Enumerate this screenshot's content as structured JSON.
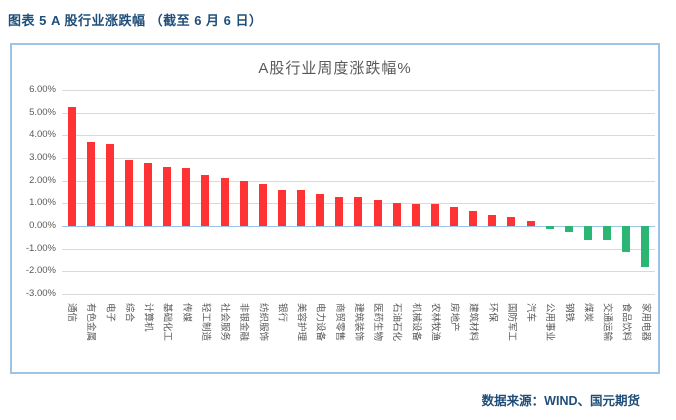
{
  "page": {
    "header_title": "图表 5 A 股行业涨跌幅 （截至 6 月 6 日）",
    "source_text": "数据来源：WIND、国元期货"
  },
  "chart_data": {
    "type": "bar",
    "title": "A股行业周度涨跌幅%",
    "categories": [
      "通信",
      "有色金属",
      "电子",
      "综合",
      "计算机",
      "基础化工",
      "传媒",
      "轻工制造",
      "社会服务",
      "非银金融",
      "纺织服饰",
      "银行",
      "美容护理",
      "电力设备",
      "商贸零售",
      "建筑装饰",
      "医药生物",
      "石油石化",
      "机械设备",
      "农林牧渔",
      "房地产",
      "建筑材料",
      "环保",
      "国防军工",
      "汽车",
      "公用事业",
      "钢铁",
      "煤炭",
      "交通运输",
      "食品饮料",
      "家用电器"
    ],
    "values": [
      5.25,
      3.7,
      3.6,
      2.9,
      2.8,
      2.6,
      2.55,
      2.25,
      2.1,
      2.0,
      1.85,
      1.6,
      1.6,
      1.4,
      1.3,
      1.3,
      1.15,
      1.0,
      0.95,
      0.95,
      0.85,
      0.65,
      0.5,
      0.4,
      0.2,
      -0.15,
      -0.25,
      -0.6,
      -0.6,
      -1.15,
      -1.8
    ],
    "xlabel": "",
    "ylabel": "",
    "ylim": [
      -3,
      6
    ],
    "ytick_labels": [
      "6.00%",
      "5.00%",
      "4.00%",
      "3.00%",
      "2.00%",
      "1.00%",
      "0.00%",
      "-1.00%",
      "-2.00%",
      "-3.00%"
    ],
    "grid": true,
    "legend": "none",
    "colors": {
      "positive_bar": "#FF3333",
      "negative_bar": "#2BB673",
      "gridline": "#D9D9D9",
      "zero_line": "#9DC3E6",
      "frame_border": "#9DC3E6",
      "axis_text": "#595959",
      "title_text": "#595959",
      "header_text": "#1F4E79",
      "source_text": "#1F4E79"
    }
  }
}
